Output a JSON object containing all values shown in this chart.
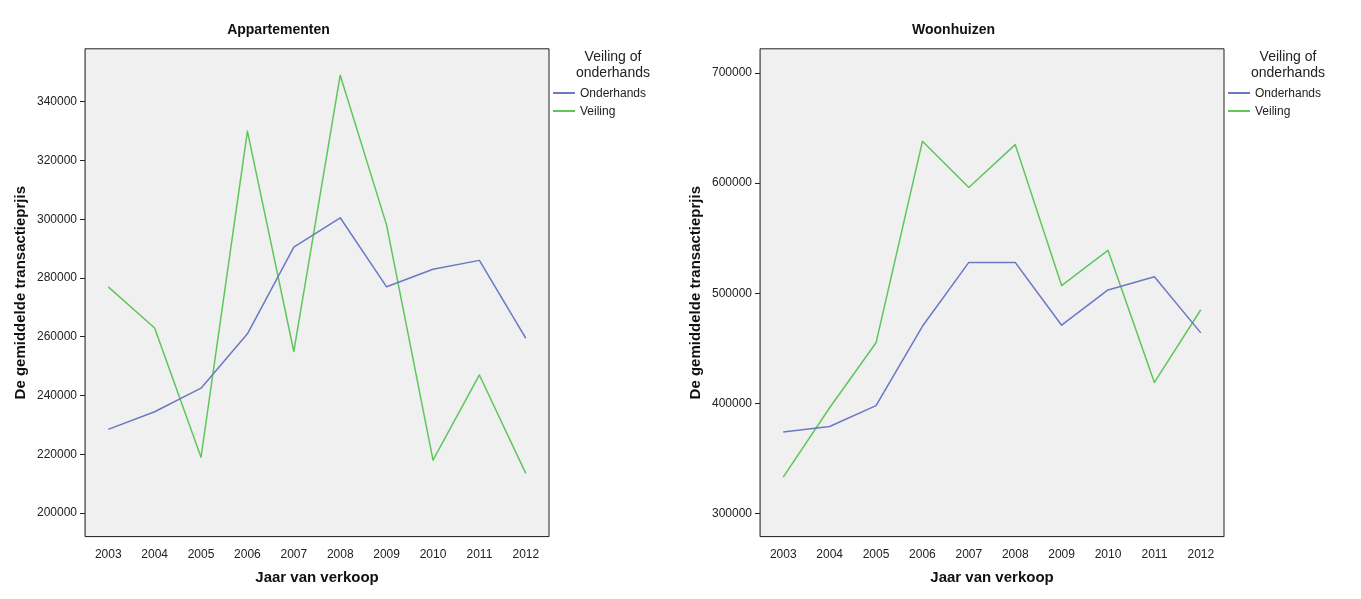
{
  "chart_data": [
    {
      "type": "line",
      "title": "Appartementen",
      "xlabel": "Jaar van verkoop",
      "ylabel": "De gemiddelde transactieprjis",
      "legend_title": "Veiling of onderhands",
      "legend": "right",
      "categories": [
        "2003",
        "2004",
        "2005",
        "2006",
        "2007",
        "2008",
        "2009",
        "2010",
        "2011",
        "2012"
      ],
      "ylim": [
        192000,
        358000
      ],
      "yticks": [
        200000,
        220000,
        240000,
        260000,
        280000,
        300000,
        320000,
        340000
      ],
      "grid": false,
      "series": [
        {
          "name": "Onderhands",
          "color": "#6b78c4",
          "values": [
            228500,
            234500,
            242500,
            261000,
            290500,
            300500,
            277000,
            283000,
            286000,
            259500
          ]
        },
        {
          "name": "Veiling",
          "color": "#5ec75a",
          "values": [
            277000,
            263000,
            219000,
            330000,
            255000,
            349000,
            298000,
            218000,
            247000,
            213500
          ]
        }
      ]
    },
    {
      "type": "line",
      "title": "Woonhuizen",
      "xlabel": "Jaar van verkoop",
      "ylabel": "De gemiddelde transactieprjis",
      "legend_title": "Veiling of onderhands",
      "legend": "right",
      "categories": [
        "2003",
        "2004",
        "2005",
        "2006",
        "2007",
        "2008",
        "2009",
        "2010",
        "2011",
        "2012"
      ],
      "ylim": [
        279000,
        722000
      ],
      "yticks": [
        300000,
        400000,
        500000,
        600000,
        700000
      ],
      "grid": false,
      "series": [
        {
          "name": "Onderhands",
          "color": "#6b78c4",
          "values": [
            374000,
            379000,
            398000,
            470000,
            528000,
            528000,
            471000,
            503000,
            515000,
            464000
          ]
        },
        {
          "name": "Veiling",
          "color": "#5ec75a",
          "values": [
            333000,
            396000,
            455000,
            638000,
            596000,
            635000,
            507000,
            539000,
            419000,
            485000
          ]
        }
      ]
    }
  ]
}
